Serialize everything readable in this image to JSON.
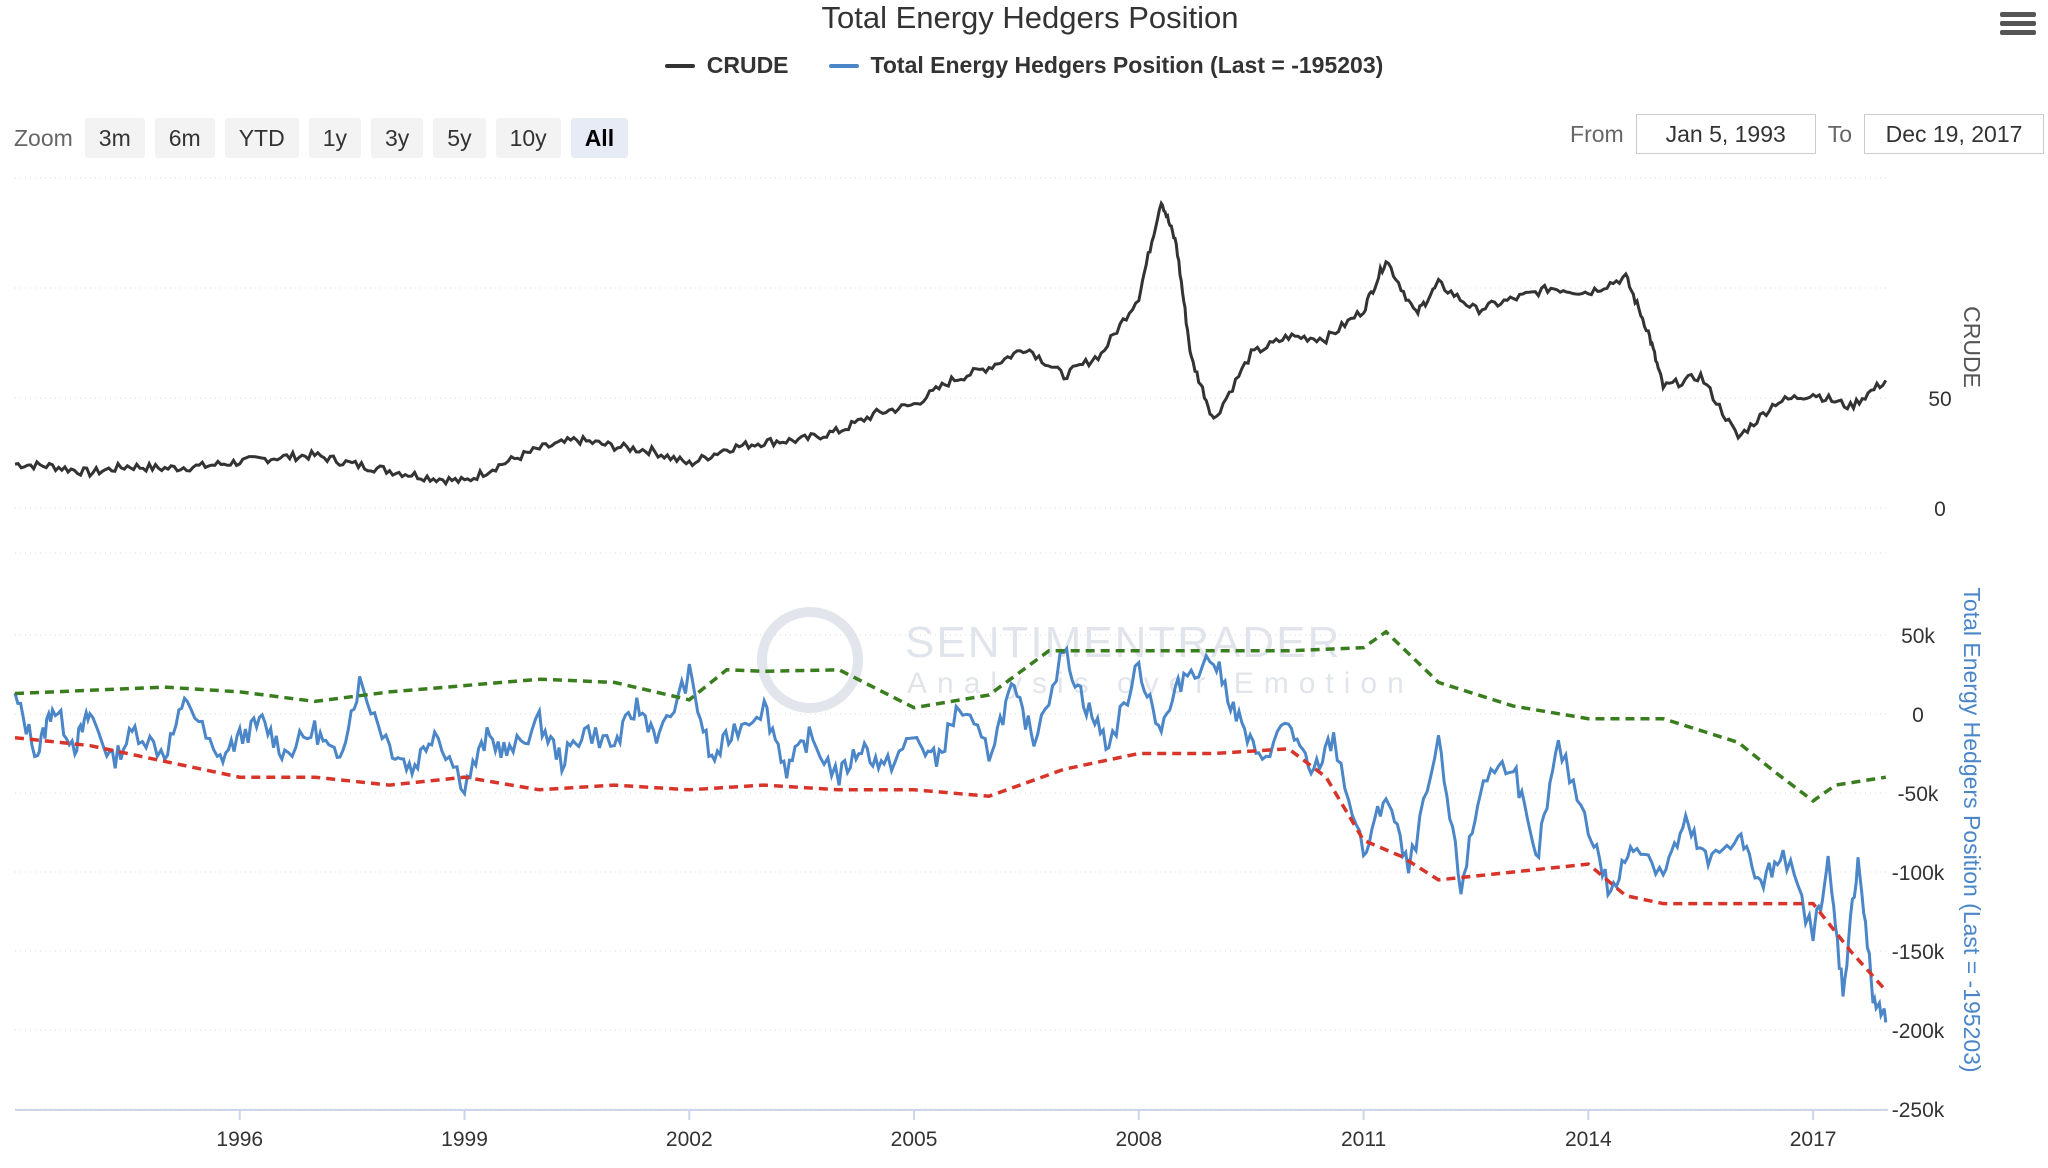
{
  "title": "Total Energy Hedgers Position",
  "legend": [
    {
      "label": "CRUDE",
      "color": "#333333"
    },
    {
      "label": "Total Energy Hedgers Position (Last = -195203)",
      "color": "#4a86c8"
    }
  ],
  "toolbar": {
    "zoom_label": "Zoom",
    "zoom_buttons": [
      "3m",
      "6m",
      "YTD",
      "1y",
      "3y",
      "5y",
      "10y",
      "All"
    ],
    "active_zoom": "All",
    "from_label": "From",
    "from_value": "Jan 5, 1993",
    "to_label": "To",
    "to_value": "Dec 19, 2017"
  },
  "watermark": {
    "brand": "SENTIMENTRADER",
    "tagline": "Analysis over Emotion"
  },
  "colors": {
    "crude": "#333333",
    "hedgers": "#4a86c8",
    "upper_band": "#3a7d1e",
    "lower_band": "#d8352a",
    "grid": "#d9d9d9"
  },
  "chart_data": [
    {
      "type": "line",
      "ylabel": "CRUDE",
      "y_axis_side": "right",
      "ylim": [
        0,
        150
      ],
      "ytick_labels": [
        "0",
        "50"
      ],
      "ytick_values": [
        0,
        50
      ],
      "grid": true,
      "series": [
        {
          "name": "CRUDE",
          "x": [
            1993.0,
            1993.5,
            1994.0,
            1994.5,
            1995.0,
            1995.5,
            1996.0,
            1996.5,
            1997.0,
            1997.5,
            1998.0,
            1998.5,
            1999.0,
            1999.5,
            2000.0,
            2000.5,
            2001.0,
            2001.5,
            2002.0,
            2002.5,
            2003.0,
            2003.5,
            2004.0,
            2004.5,
            2005.0,
            2005.5,
            2006.0,
            2006.5,
            2007.0,
            2007.5,
            2008.0,
            2008.3,
            2008.5,
            2008.7,
            2009.0,
            2009.5,
            2010.0,
            2010.5,
            2011.0,
            2011.3,
            2011.7,
            2012.0,
            2012.5,
            2013.0,
            2013.5,
            2014.0,
            2014.5,
            2014.8,
            2015.0,
            2015.5,
            2016.0,
            2016.5,
            2017.0,
            2017.5,
            2017.97
          ],
          "values": [
            20,
            19,
            16,
            19,
            18,
            19,
            21,
            23,
            24,
            20,
            17,
            14,
            12,
            20,
            27,
            31,
            28,
            26,
            20,
            27,
            30,
            31,
            35,
            43,
            47,
            58,
            64,
            73,
            60,
            70,
            96,
            140,
            120,
            68,
            40,
            70,
            78,
            77,
            90,
            113,
            88,
            102,
            90,
            95,
            100,
            98,
            105,
            80,
            55,
            60,
            32,
            48,
            52,
            46,
            58
          ]
        }
      ]
    },
    {
      "type": "line",
      "ylabel": "Total Energy Hedgers Position (Last = -195203)",
      "y_axis_side": "right",
      "ylim": [
        -250000,
        50000
      ],
      "ytick_labels": [
        "50k",
        "0",
        "-50k",
        "-100k",
        "-150k",
        "-200k",
        "-250k"
      ],
      "ytick_values": [
        50000,
        0,
        -50000,
        -100000,
        -150000,
        -200000,
        -250000
      ],
      "xlabel": "",
      "xtick_labels": [
        "1996",
        "1999",
        "2002",
        "2005",
        "2008",
        "2011",
        "2014",
        "2017"
      ],
      "xtick_values": [
        1996,
        1999,
        2002,
        2005,
        2008,
        2011,
        2014,
        2017
      ],
      "xlim": [
        1993.0,
        2018.0
      ],
      "grid": true,
      "series": [
        {
          "name": "Total Energy Hedgers Position (Last = -195203)",
          "x": [
            1993.0,
            1993.3,
            1993.5,
            1993.8,
            1994.0,
            1994.3,
            1994.6,
            1995.0,
            1995.3,
            1995.7,
            1996.0,
            1996.3,
            1996.6,
            1997.0,
            1997.3,
            1997.6,
            1998.0,
            1998.3,
            1998.6,
            1999.0,
            1999.3,
            1999.6,
            2000.0,
            2000.3,
            2000.6,
            2001.0,
            2001.3,
            2001.6,
            2002.0,
            2002.3,
            2002.6,
            2003.0,
            2003.3,
            2003.6,
            2004.0,
            2004.3,
            2004.6,
            2005.0,
            2005.3,
            2005.6,
            2006.0,
            2006.3,
            2006.6,
            2007.0,
            2007.3,
            2007.6,
            2008.0,
            2008.3,
            2008.6,
            2009.0,
            2009.3,
            2009.6,
            2010.0,
            2010.3,
            2010.6,
            2011.0,
            2011.3,
            2011.6,
            2012.0,
            2012.3,
            2012.6,
            2013.0,
            2013.3,
            2013.6,
            2014.0,
            2014.3,
            2014.6,
            2015.0,
            2015.3,
            2015.6,
            2016.0,
            2016.3,
            2016.6,
            2017.0,
            2017.2,
            2017.4,
            2017.6,
            2017.8,
            2017.97
          ],
          "values": [
            10000,
            -25000,
            5000,
            -20000,
            0,
            -30000,
            -10000,
            -25000,
            10000,
            -30000,
            -15000,
            -5000,
            -25000,
            -10000,
            -30000,
            20000,
            -20000,
            -35000,
            -10000,
            -45000,
            -15000,
            -25000,
            -5000,
            -30000,
            -10000,
            -20000,
            5000,
            -15000,
            25000,
            -30000,
            -10000,
            5000,
            -35000,
            -15000,
            -40000,
            -20000,
            -35000,
            -15000,
            -30000,
            5000,
            -25000,
            15000,
            -15000,
            40000,
            5000,
            -20000,
            30000,
            -10000,
            25000,
            35000,
            0,
            -30000,
            -5000,
            -40000,
            -15000,
            -90000,
            -50000,
            -100000,
            -20000,
            -110000,
            -40000,
            -30000,
            -95000,
            -20000,
            -70000,
            -115000,
            -80000,
            -100000,
            -70000,
            -95000,
            -75000,
            -110000,
            -85000,
            -140000,
            -95000,
            -175000,
            -90000,
            -180000,
            -195203
          ]
        },
        {
          "name": "",
          "style": "dashed",
          "x": [
            1993.0,
            1995.0,
            1996.0,
            1997.0,
            1998.0,
            1999.0,
            2000.0,
            2001.0,
            2002.0,
            2002.5,
            2003.0,
            2004.0,
            2005.0,
            2006.0,
            2006.8,
            2007.0,
            2008.0,
            2009.0,
            2010.0,
            2011.0,
            2011.3,
            2012.0,
            2013.0,
            2014.0,
            2015.0,
            2016.0,
            2016.5,
            2017.0,
            2017.3,
            2017.97
          ],
          "values": [
            13000,
            17000,
            14000,
            8000,
            14000,
            18000,
            22000,
            20000,
            9000,
            28000,
            27000,
            28000,
            4000,
            12000,
            40000,
            40000,
            40000,
            40000,
            40000,
            42000,
            52000,
            20000,
            5000,
            -3000,
            -3000,
            -18000,
            -37000,
            -55000,
            -45000,
            -40000
          ]
        },
        {
          "name": "",
          "style": "dashed",
          "x": [
            1993.0,
            1994.0,
            1995.0,
            1996.0,
            1997.0,
            1998.0,
            1999.0,
            2000.0,
            2001.0,
            2002.0,
            2003.0,
            2004.0,
            2005.0,
            2006.0,
            2007.0,
            2008.0,
            2009.0,
            2010.0,
            2010.5,
            2011.0,
            2011.5,
            2012.0,
            2013.0,
            2014.0,
            2014.5,
            2015.0,
            2016.0,
            2017.0,
            2017.5,
            2017.97
          ],
          "values": [
            -15000,
            -20000,
            -30000,
            -40000,
            -40000,
            -45000,
            -40000,
            -48000,
            -45000,
            -48000,
            -45000,
            -48000,
            -48000,
            -52000,
            -35000,
            -25000,
            -25000,
            -22000,
            -40000,
            -80000,
            -90000,
            -105000,
            -100000,
            -95000,
            -115000,
            -120000,
            -120000,
            -120000,
            -150000,
            -175000
          ]
        }
      ]
    }
  ]
}
